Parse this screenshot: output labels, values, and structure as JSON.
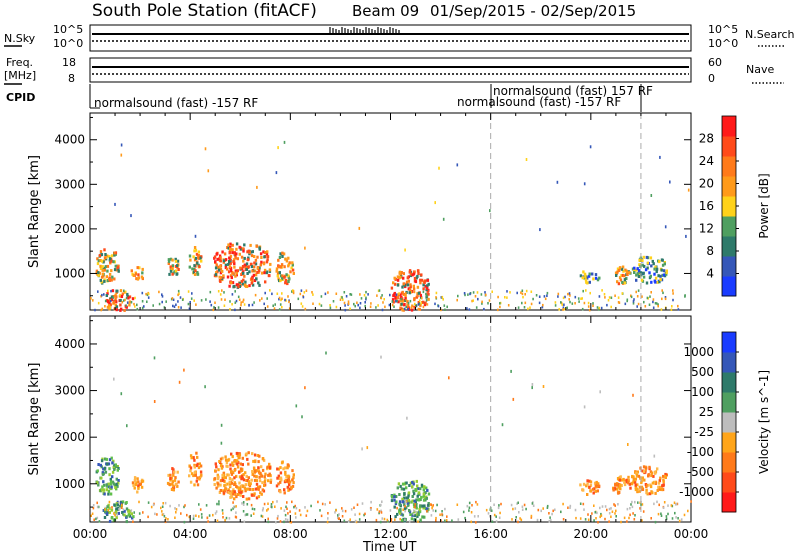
{
  "header": {
    "title": "South Pole Station (fitACF)",
    "beam": "Beam 09",
    "date_range": "01/Sep/2015 - 02/Sep/2015"
  },
  "strip_panels": {
    "nsky_label": "N.Sky",
    "nsky_ticks": [
      "10^5",
      "10^0"
    ],
    "nsearch_label": "N.Search",
    "nsearch_ticks": [
      "10^5",
      "10^0"
    ],
    "freq_label": "Freq.",
    "freq_unit": "[MHz]",
    "freq_ticks": [
      "18",
      "8"
    ],
    "nave_label": "Nave",
    "nave_ticks": [
      "60",
      "0"
    ],
    "cpid_label": "CPID",
    "cpid_entries": [
      {
        "text": "normalsound (fast) -157 RF",
        "start": 0.0,
        "row": "upper"
      },
      {
        "text": "normalsound (fast) -157 RF",
        "start": 16.0,
        "row": "lower"
      },
      {
        "text": "normalsound (fast) 157 RF",
        "start": 16.0,
        "row": "upper"
      }
    ]
  },
  "chart_data": [
    {
      "type": "heatmap",
      "title": "",
      "xlabel": "",
      "ylabel": "Slant Range [km]",
      "xlim": [
        0,
        24
      ],
      "ylim": [
        180,
        4600
      ],
      "yticks": [
        1000,
        2000,
        3000,
        4000
      ],
      "colorbar": {
        "label": "Power [dB]",
        "ticks": [
          "4",
          "8",
          "12",
          "16",
          "20",
          "24",
          "28"
        ],
        "colors": [
          "#1a3cff",
          "#3557b8",
          "#2e7a6a",
          "#4f9f60",
          "#ffd21a",
          "#ff9a1a",
          "#ff7a1a",
          "#ff4a1a",
          "#ff1a1a"
        ]
      },
      "vertical_markers": [
        16.0,
        22.0
      ],
      "blobs": [
        {
          "t0": 0.2,
          "t1": 1.1,
          "r0": 800,
          "r1": 1600,
          "level": "med"
        },
        {
          "t0": 0.5,
          "t1": 1.7,
          "r0": 200,
          "r1": 650,
          "level": "high"
        },
        {
          "t0": 1.6,
          "t1": 2.1,
          "r0": 850,
          "r1": 1200,
          "level": "med"
        },
        {
          "t0": 3.0,
          "t1": 3.5,
          "r0": 900,
          "r1": 1400,
          "level": "med"
        },
        {
          "t0": 3.9,
          "t1": 4.4,
          "r0": 1000,
          "r1": 1700,
          "level": "med"
        },
        {
          "t0": 4.9,
          "t1": 7.2,
          "r0": 700,
          "r1": 1700,
          "level": "high"
        },
        {
          "t0": 7.4,
          "t1": 8.1,
          "r0": 800,
          "r1": 1500,
          "level": "med"
        },
        {
          "t0": 12.0,
          "t1": 13.5,
          "r0": 200,
          "r1": 1100,
          "level": "high"
        },
        {
          "t0": 19.5,
          "t1": 20.3,
          "r0": 800,
          "r1": 1100,
          "level": "low"
        },
        {
          "t0": 20.8,
          "t1": 21.6,
          "r0": 800,
          "r1": 1200,
          "level": "med"
        },
        {
          "t0": 21.6,
          "t1": 23.0,
          "r0": 800,
          "r1": 1400,
          "level": "low"
        }
      ]
    },
    {
      "type": "heatmap",
      "title": "",
      "xlabel": "Time UT",
      "ylabel": "Slant Range [km]",
      "xlim": [
        0,
        24
      ],
      "ylim": [
        180,
        4600
      ],
      "yticks": [
        1000,
        2000,
        3000,
        4000
      ],
      "xticks": [
        "00:00",
        "04:00",
        "08:00",
        "12:00",
        "16:00",
        "20:00",
        "00:00"
      ],
      "colorbar": {
        "label": "Velocity [m s^-1]",
        "ticks": [
          "1000",
          "500",
          "100",
          "25",
          "-25",
          "-100",
          "-500",
          "-1000"
        ],
        "colors": [
          "#1a3cff",
          "#3557b8",
          "#2e7a6a",
          "#4f9f60",
          "#bdbdbd",
          "#ffa51a",
          "#ff7a1a",
          "#ff4a1a",
          "#ff1a1a"
        ]
      },
      "vertical_markers": [
        16.0,
        22.0
      ],
      "blobs": [
        {
          "t0": 0.2,
          "t1": 1.1,
          "r0": 800,
          "r1": 1600,
          "level": "pos"
        },
        {
          "t0": 0.5,
          "t1": 1.7,
          "r0": 200,
          "r1": 650,
          "level": "pos"
        },
        {
          "t0": 1.6,
          "t1": 2.1,
          "r0": 850,
          "r1": 1200,
          "level": "neg"
        },
        {
          "t0": 3.0,
          "t1": 3.5,
          "r0": 900,
          "r1": 1400,
          "level": "neg"
        },
        {
          "t0": 3.9,
          "t1": 4.4,
          "r0": 1000,
          "r1": 1700,
          "level": "neg"
        },
        {
          "t0": 4.9,
          "t1": 7.2,
          "r0": 700,
          "r1": 1700,
          "level": "neg"
        },
        {
          "t0": 7.4,
          "t1": 8.1,
          "r0": 800,
          "r1": 1500,
          "level": "neg"
        },
        {
          "t0": 12.0,
          "t1": 13.5,
          "r0": 200,
          "r1": 1100,
          "level": "pos"
        },
        {
          "t0": 19.5,
          "t1": 20.3,
          "r0": 800,
          "r1": 1100,
          "level": "neg"
        },
        {
          "t0": 20.8,
          "t1": 21.6,
          "r0": 800,
          "r1": 1200,
          "level": "neg"
        },
        {
          "t0": 21.6,
          "t1": 23.0,
          "r0": 800,
          "r1": 1400,
          "level": "neg"
        }
      ]
    }
  ]
}
